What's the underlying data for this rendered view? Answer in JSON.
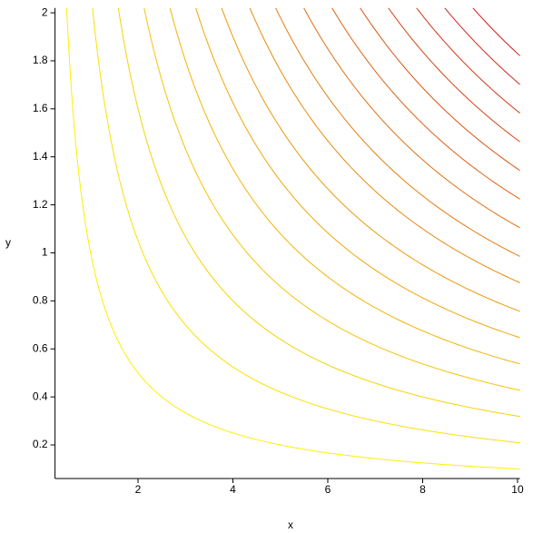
{
  "chart_data": {
    "type": "contour",
    "x_label": "x",
    "y_label": "y",
    "levels": [
      1.0,
      2.1,
      3.2,
      4.3,
      5.4,
      6.5,
      7.6,
      8.8,
      9.9,
      11.1,
      12.3,
      13.5,
      14.7,
      15.9,
      17.1,
      18.3
    ],
    "color_low": "#ffee00",
    "color_high": "#cc1a1a",
    "xlim": [
      0.25,
      10.05
    ],
    "ylim": [
      0.06,
      2.02
    ],
    "xticks": [
      2,
      4,
      6,
      8,
      10
    ],
    "yticks": [
      0.2,
      0.4,
      0.6,
      0.8,
      1,
      1.2,
      1.4,
      1.6,
      1.8,
      2
    ]
  }
}
